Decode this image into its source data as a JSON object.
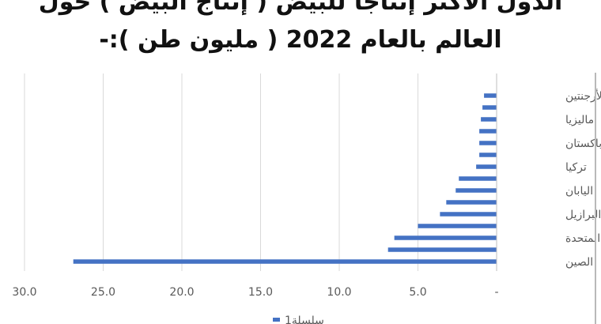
{
  "chart_data": {
    "type": "bar",
    "orientation": "horizontal",
    "title_line1": "الدول الأكثر إنتاجاً للبيض ( إنتاج البيض ) حول",
    "title_line2": "العالم بالعام 2022 ( مليون طن ):-",
    "categories": [
      "الصين",
      "",
      "الولايات المتحدة",
      "",
      "البرازيل",
      "",
      "اليابان",
      "",
      "تركيا",
      "",
      "باكستان",
      "",
      "ماليزيا",
      "",
      "الأرجنتين"
    ],
    "values": [
      26.9,
      6.9,
      6.5,
      5.0,
      3.6,
      3.2,
      2.6,
      2.4,
      1.3,
      1.1,
      1.1,
      1.1,
      1.0,
      0.9,
      0.8
    ],
    "x_tick_labels": [
      "-",
      "5.0",
      "10.0",
      "15.0",
      "20.0",
      "25.0",
      "30.0"
    ],
    "xlim": [
      0,
      30
    ],
    "x_axis_reversed": true,
    "grid": true,
    "series": [
      {
        "name": "سلسلة1",
        "color": "#4472C4"
      }
    ],
    "legend_position": "bottom"
  }
}
